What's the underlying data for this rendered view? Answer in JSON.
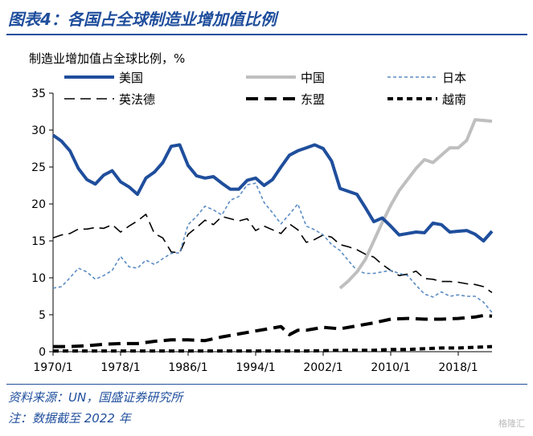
{
  "header": {
    "title": "图表4：各国占全球制造业增加值比例"
  },
  "footer": {
    "source": "资料来源：UN，国盛证券研究所",
    "note": "注：数据截至 2022 年"
  },
  "watermark": "格隆汇",
  "chart_data": {
    "type": "line",
    "ylabel": "制造业增加值占全球比例，%",
    "ylim": [
      0,
      35
    ],
    "yticks": [
      0,
      5,
      10,
      15,
      20,
      25,
      30,
      35
    ],
    "xrange": [
      1970,
      2022
    ],
    "xticks": [
      1970,
      1978,
      1986,
      1994,
      2002,
      2010,
      2018
    ],
    "xtick_labels": [
      "1970/1",
      "1978/1",
      "1986/1",
      "1994/1",
      "2002/1",
      "2010/1",
      "2018/1"
    ],
    "grid": false,
    "legend": "top, three columns",
    "series": [
      {
        "name": "美国",
        "color": "#1f4e9c",
        "style": "solid",
        "width": 4,
        "x": [
          1970,
          1971,
          1972,
          1973,
          1974,
          1975,
          1976,
          1977,
          1978,
          1979,
          1980,
          1981,
          1982,
          1983,
          1984,
          1985,
          1986,
          1987,
          1988,
          1989,
          1990,
          1991,
          1992,
          1993,
          1994,
          1995,
          1996,
          1997,
          1998,
          1999,
          2000,
          2001,
          2002,
          2003,
          2004,
          2005,
          2006,
          2007,
          2008,
          2009,
          2010,
          2011,
          2012,
          2013,
          2014,
          2015,
          2016,
          2017,
          2018,
          2019,
          2020,
          2021,
          2022
        ],
        "y": [
          29.3,
          28.5,
          27.2,
          24.8,
          23.3,
          22.7,
          23.9,
          24.5,
          23.0,
          22.3,
          21.3,
          23.5,
          24.3,
          25.6,
          27.8,
          28.0,
          25.2,
          23.8,
          23.5,
          23.7,
          22.8,
          22.0,
          22.0,
          23.2,
          23.5,
          22.5,
          23.3,
          25.0,
          26.6,
          27.2,
          27.6,
          28.0,
          27.5,
          25.8,
          22.1,
          21.7,
          21.3,
          19.5,
          17.6,
          18.1,
          17.0,
          15.8,
          16.0,
          16.2,
          16.1,
          17.4,
          17.2,
          16.2,
          16.3,
          16.4,
          15.9,
          15.0,
          16.3
        ]
      },
      {
        "name": "中国",
        "color": "#bfbfbf",
        "style": "solid",
        "width": 4,
        "x": [
          2004,
          2005,
          2006,
          2007,
          2008,
          2009,
          2010,
          2011,
          2012,
          2013,
          2014,
          2015,
          2016,
          2017,
          2018,
          2019,
          2020,
          2021,
          2022
        ],
        "y": [
          8.6,
          9.6,
          10.8,
          12.5,
          15.0,
          17.5,
          19.8,
          21.8,
          23.3,
          24.8,
          26.0,
          25.6,
          26.6,
          27.6,
          27.6,
          28.6,
          31.4,
          31.3,
          31.2
        ]
      },
      {
        "name": "日本",
        "color": "#5b8cc4",
        "style": "dash",
        "width": 1.6,
        "x": [
          1970,
          1971,
          1972,
          1973,
          1974,
          1975,
          1976,
          1977,
          1978,
          1979,
          1980,
          1981,
          1982,
          1983,
          1984,
          1985,
          1986,
          1987,
          1988,
          1989,
          1990,
          1991,
          1992,
          1993,
          1994,
          1995,
          1996,
          1997,
          1998,
          1999,
          2000,
          2001,
          2002,
          2003,
          2004,
          2005,
          2006,
          2007,
          2008,
          2009,
          2010,
          2011,
          2012,
          2013,
          2014,
          2015,
          2016,
          2017,
          2018,
          2019,
          2020,
          2021,
          2022
        ],
        "y": [
          8.6,
          8.8,
          10.0,
          11.3,
          10.8,
          9.8,
          10.3,
          11.0,
          12.9,
          11.5,
          11.3,
          12.4,
          11.8,
          12.6,
          13.3,
          13.4,
          17.2,
          18.3,
          19.7,
          19.2,
          18.5,
          20.5,
          21.0,
          22.6,
          22.8,
          20.2,
          18.8,
          17.3,
          18.6,
          20.0,
          17.0,
          16.5,
          15.8,
          14.5,
          13.7,
          12.3,
          11.0,
          10.6,
          10.6,
          10.8,
          11.0,
          10.6,
          10.3,
          9.0,
          7.8,
          7.4,
          8.1,
          7.5,
          7.7,
          7.5,
          7.5,
          6.7,
          5.3
        ]
      },
      {
        "name": "英法德",
        "color": "#000000",
        "style": "longdash",
        "width": 1.6,
        "x": [
          1970,
          1971,
          1972,
          1973,
          1974,
          1975,
          1976,
          1977,
          1978,
          1979,
          1980,
          1981,
          1982,
          1983,
          1984,
          1985,
          1986,
          1987,
          1988,
          1989,
          1990,
          1991,
          1992,
          1993,
          1994,
          1995,
          1996,
          1997,
          1998,
          1999,
          2000,
          2001,
          2002,
          2003,
          2004,
          2005,
          2006,
          2007,
          2008,
          2009,
          2010,
          2011,
          2012,
          2013,
          2014,
          2015,
          2016,
          2017,
          2018,
          2019,
          2020,
          2021,
          2022
        ],
        "y": [
          15.4,
          15.8,
          16.0,
          16.6,
          16.6,
          16.8,
          16.7,
          17.2,
          16.2,
          17.0,
          17.7,
          18.6,
          16.0,
          15.4,
          13.5,
          13.4,
          15.9,
          16.8,
          17.8,
          17.2,
          18.3,
          18.0,
          17.7,
          18.0,
          16.4,
          17.0,
          16.5,
          16.0,
          17.3,
          16.5,
          14.8,
          15.2,
          15.8,
          15.5,
          14.5,
          14.2,
          13.8,
          13.2,
          12.8,
          11.8,
          11.0,
          10.3,
          10.5,
          10.9,
          9.9,
          9.8,
          9.5,
          9.5,
          9.4,
          9.2,
          9.1,
          8.8,
          8.0
        ]
      },
      {
        "name": "东盟",
        "color": "#000000",
        "style": "thickdash",
        "width": 4,
        "x": [
          1970,
          1972,
          1974,
          1976,
          1978,
          1980,
          1982,
          1984,
          1986,
          1988,
          1990,
          1992,
          1994,
          1996,
          1997,
          1998,
          1999,
          2000,
          2002,
          2004,
          2006,
          2008,
          2010,
          2012,
          2014,
          2016,
          2018,
          2020,
          2021,
          2022
        ],
        "y": [
          0.7,
          0.7,
          0.8,
          1.0,
          1.1,
          1.1,
          1.4,
          1.6,
          1.6,
          1.5,
          2.0,
          2.4,
          2.8,
          3.2,
          3.4,
          2.3,
          2.9,
          2.9,
          3.3,
          3.1,
          3.5,
          3.9,
          4.4,
          4.5,
          4.4,
          4.4,
          4.5,
          4.7,
          4.9,
          4.8
        ]
      },
      {
        "name": "越南",
        "color": "#000000",
        "style": "dot",
        "width": 4,
        "x": [
          1970,
          1975,
          1980,
          1985,
          1990,
          1995,
          2000,
          2005,
          2008,
          2010,
          2012,
          2014,
          2016,
          2018,
          2020,
          2022
        ],
        "y": [
          0.1,
          0.1,
          0.1,
          0.1,
          0.1,
          0.1,
          0.1,
          0.2,
          0.2,
          0.3,
          0.3,
          0.4,
          0.5,
          0.5,
          0.6,
          0.7
        ]
      }
    ]
  }
}
